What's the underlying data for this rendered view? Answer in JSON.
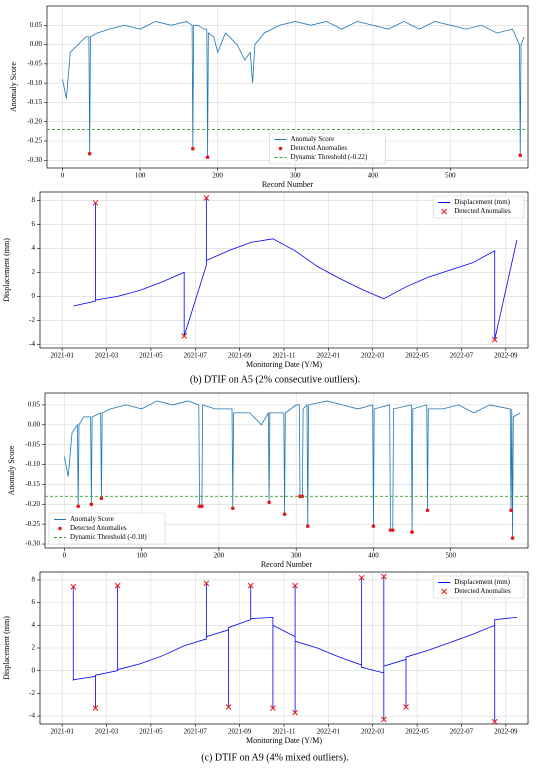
{
  "chart_data": [
    {
      "type": "line",
      "xlabel": "Record Number",
      "ylabel": "Anomaly Score",
      "xlim": [
        -20,
        600
      ],
      "ylim": [
        -0.32,
        0.1
      ],
      "xticks": [
        0,
        100,
        200,
        300,
        400,
        500
      ],
      "yticks": [
        0.05,
        {
          "value": 0,
          "label": "0.00"
        },
        -0.05,
        {
          "value": -0.1,
          "label": "-0.10"
        },
        -0.15,
        {
          "value": -0.2,
          "label": "-0.20"
        },
        -0.25,
        {
          "value": -0.3,
          "label": "-0.30"
        }
      ],
      "grid": true,
      "legend": "lower center",
      "series": [
        {
          "name": "Anomaly Score",
          "style": "line",
          "color": "#1f77b4",
          "x": [
            0,
            5,
            10,
            20,
            30,
            34,
            35,
            36,
            45,
            60,
            80,
            100,
            120,
            140,
            160,
            167,
            168,
            169,
            175,
            182,
            186,
            187,
            188,
            195,
            200,
            210,
            225,
            235,
            242,
            245,
            248,
            260,
            280,
            300,
            320,
            340,
            360,
            380,
            400,
            420,
            440,
            460,
            480,
            500,
            520,
            540,
            560,
            580,
            589,
            590,
            591,
            595
          ],
          "values": [
            -0.09,
            -0.14,
            -0.02,
            0.0,
            0.02,
            0.02,
            -0.285,
            0.02,
            0.03,
            0.04,
            0.05,
            0.04,
            0.06,
            0.05,
            0.06,
            0.05,
            -0.27,
            0.05,
            0.05,
            0.04,
            0.04,
            -0.29,
            0.03,
            0.02,
            -0.02,
            0.03,
            0.0,
            -0.04,
            -0.02,
            -0.1,
            0.0,
            0.03,
            0.05,
            0.06,
            0.05,
            0.06,
            0.04,
            0.06,
            0.05,
            0.04,
            0.06,
            0.04,
            0.06,
            0.05,
            0.04,
            0.05,
            0.03,
            0.04,
            0.0,
            -0.285,
            0.0,
            0.02
          ]
        },
        {
          "name": "Detected Anomalies",
          "style": "scatter",
          "marker": "circle",
          "color": "#e8161b",
          "x": [
            35,
            168,
            187,
            590
          ],
          "values": [
            -0.283,
            -0.27,
            -0.292,
            -0.287
          ]
        },
        {
          "name": "Dynamic Threshold (-0.22)",
          "style": "hline",
          "color": "#2ca02c",
          "values": [
            -0.22
          ]
        }
      ]
    },
    {
      "type": "line",
      "xlabel": "Monitoring Date (Y/M)",
      "ylabel": "Displacement (mm)",
      "xlim": [
        "2020-12",
        "2022-10"
      ],
      "ylim": [
        -4.3,
        8.7
      ],
      "xticks": [
        "2021-01",
        "2021-03",
        "2021-05",
        "2021-07",
        "2021-09",
        "2021-11",
        "2022-01",
        "2022-03",
        "2022-05",
        "2022-07",
        "2022-09"
      ],
      "yticks": [
        -4,
        -2,
        0,
        2,
        4,
        6,
        8
      ],
      "grid": true,
      "legend": "upper right",
      "series": [
        {
          "name": "Displacement (mm)",
          "style": "line",
          "color": "#0000ff",
          "x": [
            "2021-01",
            "2021-02",
            "2021-02",
            "2021-02",
            "2021-03",
            "2021-04",
            "2021-05",
            "2021-06",
            "2021-06",
            "2021-07",
            "2021-07",
            "2021-07",
            "2021-08",
            "2021-09",
            "2021-10",
            "2021-11",
            "2021-12",
            "2022-01",
            "2022-02",
            "2022-03",
            "2022-04",
            "2022-05",
            "2022-06",
            "2022-07",
            "2022-08",
            "2022-08",
            "2022-09"
          ],
          "values": [
            -0.8,
            -0.4,
            7.8,
            -0.3,
            0.0,
            0.5,
            1.2,
            2.0,
            -3.3,
            2.6,
            8.2,
            3.0,
            3.8,
            4.5,
            4.8,
            3.8,
            2.5,
            1.5,
            0.6,
            -0.2,
            0.8,
            1.6,
            2.2,
            2.8,
            3.8,
            -3.6,
            4.7
          ]
        },
        {
          "name": "Detected Anomalies",
          "style": "scatter",
          "marker": "x",
          "color": "#e8161b",
          "x": [
            "2021-02",
            "2021-06",
            "2021-07",
            "2022-08"
          ],
          "values": [
            7.8,
            -3.3,
            8.2,
            -3.6
          ]
        }
      ]
    },
    {
      "type": "line",
      "xlabel": "Record Number",
      "ylabel": "Anomaly Score",
      "xlim": [
        -25,
        600
      ],
      "ylim": [
        -0.31,
        0.08
      ],
      "xticks": [
        0,
        100,
        200,
        300,
        400,
        500
      ],
      "yticks": [
        0.05,
        {
          "value": 0,
          "label": "0.00"
        },
        -0.05,
        {
          "value": -0.1,
          "label": "-0.10"
        },
        -0.15,
        {
          "value": -0.2,
          "label": "-0.20"
        },
        -0.25,
        {
          "value": -0.3,
          "label": "-0.30"
        }
      ],
      "grid": true,
      "legend": "lower left",
      "series": [
        {
          "name": "Anomaly Score",
          "style": "line",
          "color": "#1f77b4",
          "x": [
            0,
            5,
            10,
            17,
            18,
            19,
            25,
            34,
            35,
            36,
            47,
            48,
            49,
            60,
            80,
            100,
            120,
            140,
            160,
            174,
            175,
            178,
            179,
            195,
            217,
            218,
            219,
            240,
            255,
            264,
            265,
            266,
            284,
            285,
            286,
            300,
            304,
            305,
            308,
            309,
            314,
            315,
            316,
            340,
            360,
            380,
            399,
            400,
            401,
            421,
            422,
            425,
            426,
            449,
            450,
            451,
            469,
            470,
            471,
            490,
            510,
            530,
            550,
            577,
            578,
            579,
            580,
            581,
            590
          ],
          "values": [
            -0.08,
            -0.13,
            -0.02,
            0.0,
            -0.205,
            0.0,
            0.02,
            0.02,
            -0.2,
            0.02,
            0.03,
            -0.185,
            0.03,
            0.04,
            0.05,
            0.04,
            0.06,
            0.05,
            0.06,
            0.05,
            -0.205,
            -0.205,
            0.05,
            0.04,
            0.04,
            -0.21,
            0.03,
            0.03,
            0.0,
            0.03,
            -0.195,
            0.03,
            0.03,
            -0.225,
            0.03,
            0.05,
            0.05,
            -0.18,
            -0.18,
            0.04,
            0.05,
            -0.255,
            0.05,
            0.06,
            0.05,
            0.04,
            0.05,
            -0.255,
            0.04,
            0.05,
            -0.265,
            -0.265,
            0.04,
            0.05,
            -0.27,
            0.04,
            0.05,
            -0.215,
            0.04,
            0.04,
            0.05,
            0.03,
            0.05,
            0.04,
            -0.215,
            0.04,
            -0.285,
            0.02,
            0.03
          ]
        },
        {
          "name": "Detected Anomalies",
          "style": "scatter",
          "marker": "circle",
          "color": "#e8161b",
          "x": [
            18,
            35,
            48,
            175,
            178,
            218,
            265,
            285,
            305,
            308,
            315,
            400,
            422,
            425,
            450,
            470,
            578,
            580
          ],
          "values": [
            -0.205,
            -0.2,
            -0.185,
            -0.205,
            -0.205,
            -0.21,
            -0.195,
            -0.225,
            -0.18,
            -0.18,
            -0.255,
            -0.255,
            -0.265,
            -0.265,
            -0.27,
            -0.215,
            -0.215,
            -0.285
          ]
        },
        {
          "name": "Dynamic Threshold (-0.18)",
          "style": "hline",
          "color": "#2ca02c",
          "values": [
            -0.18
          ]
        }
      ]
    },
    {
      "type": "line",
      "xlabel": "Monitoring Date (Y/M)",
      "ylabel": "Displacement (mm)",
      "xlim": [
        "2020-12",
        "2022-10"
      ],
      "ylim": [
        -4.7,
        8.7
      ],
      "xticks": [
        "2021-01",
        "2021-03",
        "2021-05",
        "2021-07",
        "2021-09",
        "2021-11",
        "2022-01",
        "2022-03",
        "2022-05",
        "2022-07",
        "2022-09"
      ],
      "yticks": [
        -4,
        -2,
        0,
        2,
        4,
        6,
        8
      ],
      "grid": true,
      "legend": "upper right",
      "series": [
        {
          "name": "Displacement (mm)",
          "style": "line",
          "color": "#0000ff",
          "x": [
            "2021-01",
            "2021-01",
            "2021-01",
            "2021-02",
            "2021-02",
            "2021-02",
            "2021-03",
            "2021-03",
            "2021-03",
            "2021-04",
            "2021-05",
            "2021-06",
            "2021-07",
            "2021-07",
            "2021-07",
            "2021-08",
            "2021-08",
            "2021-08",
            "2021-09",
            "2021-09",
            "2021-09",
            "2021-10",
            "2021-10",
            "2021-10",
            "2021-11",
            "2021-11",
            "2021-11",
            "2021-11",
            "2021-12",
            "2022-01",
            "2022-02",
            "2022-02",
            "2022-02",
            "2022-03",
            "2022-03",
            "2022-03",
            "2022-03",
            "2022-04",
            "2022-04",
            "2022-04",
            "2022-05",
            "2022-06",
            "2022-07",
            "2022-08",
            "2022-08",
            "2022-08",
            "2022-09"
          ],
          "values": [
            -0.9,
            7.4,
            -0.8,
            -0.5,
            -3.3,
            -0.4,
            0.0,
            7.5,
            0.1,
            0.6,
            1.3,
            2.2,
            2.8,
            7.7,
            3.0,
            3.6,
            -3.2,
            3.8,
            4.5,
            7.5,
            4.6,
            4.7,
            -3.3,
            4.0,
            3.0,
            7.5,
            -3.7,
            2.6,
            2.0,
            1.2,
            0.5,
            8.2,
            0.3,
            -0.2,
            -4.3,
            8.3,
            0.4,
            1.0,
            -3.2,
            1.2,
            1.8,
            2.5,
            3.2,
            4.0,
            -4.5,
            4.5,
            4.7
          ]
        },
        {
          "name": "Detected Anomalies",
          "style": "scatter",
          "marker": "x",
          "color": "#e8161b",
          "x": [
            "2021-01",
            "2021-02",
            "2021-03",
            "2021-07",
            "2021-08",
            "2021-09",
            "2021-10",
            "2021-11",
            "2021-11",
            "2022-02",
            "2022-03",
            "2022-03",
            "2022-04",
            "2022-08"
          ],
          "values": [
            7.4,
            -3.3,
            7.5,
            7.7,
            -3.2,
            7.5,
            -3.3,
            7.5,
            -3.7,
            8.2,
            -4.3,
            8.3,
            -3.2,
            -4.5
          ]
        }
      ]
    }
  ],
  "captions": [
    "(b) DTIF on A5 (2% consecutive outliers).",
    "(c) DTIF on A9 (4% mixed outliers)."
  ]
}
